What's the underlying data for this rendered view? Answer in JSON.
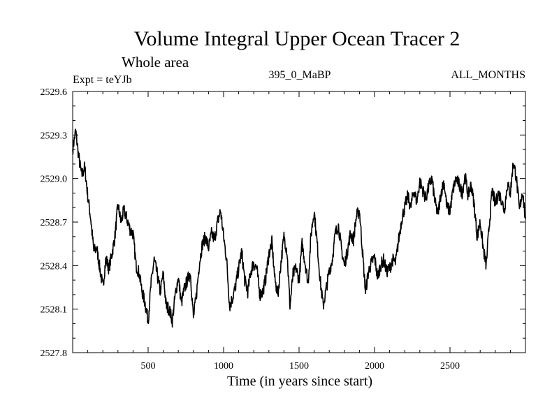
{
  "chart_data": {
    "type": "line",
    "title": "Volume Integral Upper Ocean Tracer 2",
    "subtitle": "Whole area",
    "experiment": "Expt = teYJb",
    "center_label": "395_0_MaBP",
    "right_label": "ALL_MONTHS",
    "xlabel": "Time (in years since start)",
    "ylabel": "",
    "xlim": [
      0,
      3000
    ],
    "ylim": [
      2527.8,
      2529.6
    ],
    "xticks": [
      500,
      1000,
      1500,
      2000,
      2500
    ],
    "xtick_labels": [
      "500",
      "1000",
      "1500",
      "2000",
      "2500"
    ],
    "yticks": [
      2527.8,
      2528.1,
      2528.4,
      2528.7,
      2529.0,
      2529.3,
      2529.6
    ],
    "ytick_labels": [
      "2527.8",
      "2528.1",
      "2528.4",
      "2528.7",
      "2529.0",
      "2529.3",
      "2529.6"
    ],
    "grid": false,
    "series": [
      {
        "name": "Volume Integral Upper Ocean Tracer 2",
        "color": "#000000",
        "x": [
          0,
          20,
          40,
          60,
          80,
          100,
          120,
          140,
          160,
          180,
          200,
          220,
          240,
          260,
          280,
          300,
          320,
          340,
          360,
          380,
          400,
          420,
          440,
          460,
          480,
          500,
          520,
          540,
          560,
          580,
          600,
          620,
          640,
          660,
          680,
          700,
          720,
          740,
          760,
          780,
          800,
          820,
          840,
          860,
          880,
          900,
          920,
          940,
          960,
          980,
          1000,
          1020,
          1040,
          1060,
          1080,
          1100,
          1120,
          1140,
          1160,
          1180,
          1200,
          1220,
          1240,
          1260,
          1280,
          1300,
          1320,
          1340,
          1360,
          1380,
          1400,
          1420,
          1440,
          1460,
          1480,
          1500,
          1520,
          1540,
          1560,
          1580,
          1600,
          1620,
          1640,
          1660,
          1680,
          1700,
          1720,
          1740,
          1760,
          1780,
          1800,
          1820,
          1840,
          1860,
          1880,
          1900,
          1920,
          1940,
          1960,
          1980,
          2000,
          2020,
          2040,
          2060,
          2080,
          2100,
          2120,
          2140,
          2160,
          2180,
          2200,
          2220,
          2240,
          2260,
          2280,
          2300,
          2320,
          2340,
          2360,
          2380,
          2400,
          2420,
          2440,
          2460,
          2480,
          2500,
          2520,
          2540,
          2560,
          2580,
          2600,
          2620,
          2640,
          2660,
          2680,
          2700,
          2720,
          2740,
          2760,
          2780,
          2800,
          2820,
          2840,
          2860,
          2880,
          2900,
          2920,
          2940,
          2960,
          2980,
          3000
        ],
        "values": [
          2529.2,
          2529.33,
          2529.15,
          2529.02,
          2529.08,
          2528.88,
          2528.72,
          2528.5,
          2528.52,
          2528.38,
          2528.25,
          2528.45,
          2528.38,
          2528.48,
          2528.6,
          2528.82,
          2528.7,
          2528.78,
          2528.72,
          2528.65,
          2528.62,
          2528.4,
          2528.35,
          2528.22,
          2528.14,
          2528.02,
          2528.28,
          2528.44,
          2528.34,
          2528.22,
          2528.34,
          2528.12,
          2528.1,
          2528.02,
          2528.2,
          2528.32,
          2528.14,
          2528.24,
          2528.3,
          2528.35,
          2528.04,
          2528.2,
          2528.42,
          2528.55,
          2528.6,
          2528.52,
          2528.62,
          2528.58,
          2528.7,
          2528.78,
          2528.6,
          2528.44,
          2528.12,
          2528.18,
          2528.26,
          2528.38,
          2528.5,
          2528.3,
          2528.22,
          2528.36,
          2528.42,
          2528.38,
          2528.2,
          2528.22,
          2528.32,
          2528.48,
          2528.56,
          2528.3,
          2528.2,
          2528.42,
          2528.6,
          2528.5,
          2528.12,
          2528.34,
          2528.38,
          2528.3,
          2528.55,
          2528.42,
          2528.28,
          2528.62,
          2528.78,
          2528.55,
          2528.3,
          2528.12,
          2528.24,
          2528.36,
          2528.44,
          2528.62,
          2528.68,
          2528.52,
          2528.4,
          2528.5,
          2528.62,
          2528.58,
          2528.74,
          2528.78,
          2528.5,
          2528.22,
          2528.36,
          2528.42,
          2528.46,
          2528.32,
          2528.4,
          2528.44,
          2528.36,
          2528.38,
          2528.44,
          2528.42,
          2528.58,
          2528.72,
          2528.8,
          2528.88,
          2528.8,
          2528.92,
          2528.84,
          2528.98,
          2528.92,
          2528.86,
          2528.95,
          2529.0,
          2528.84,
          2528.75,
          2528.9,
          2528.98,
          2528.8,
          2528.78,
          2528.92,
          2529.0,
          2528.96,
          2528.9,
          2529.02,
          2528.88,
          2528.96,
          2528.82,
          2528.6,
          2528.7,
          2528.52,
          2528.4,
          2528.68,
          2528.92,
          2528.82,
          2528.9,
          2528.86,
          2528.78,
          2528.96,
          2528.9,
          2529.12,
          2529.0,
          2528.78,
          2528.92,
          2528.72
        ]
      }
    ]
  }
}
